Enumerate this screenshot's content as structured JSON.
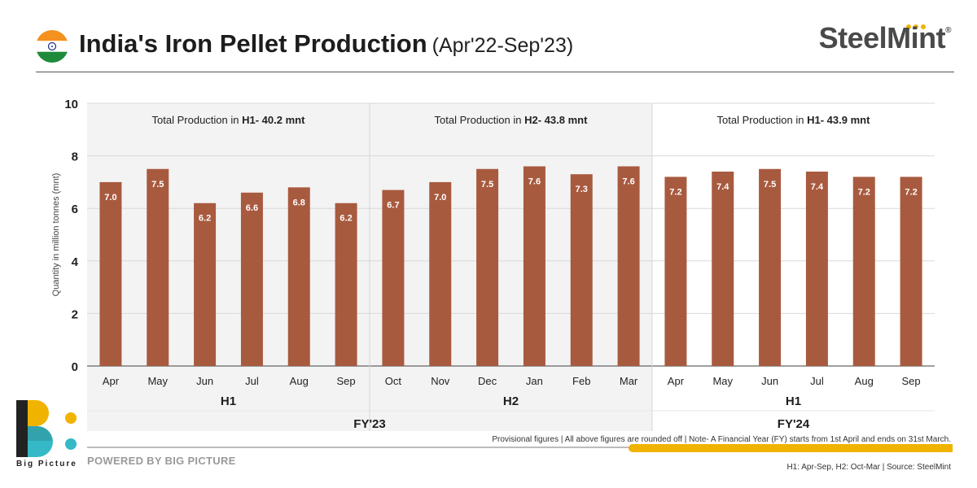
{
  "header": {
    "title": "India's Iron Pellet Production",
    "subtitle": "(Apr'22-Sep'23)",
    "brand": "SteelMint",
    "brand_reg": "®"
  },
  "chart_data": {
    "type": "bar",
    "title": "India's Iron Pellet Production (Apr'22-Sep'23)",
    "ylabel": "Quantity in million tonnes (mnt)",
    "xlabel": "",
    "ylim": [
      0,
      10
    ],
    "yticks": [
      0,
      2,
      4,
      6,
      8,
      10
    ],
    "grid": true,
    "bar_color": "#a85a3f",
    "categories": [
      "Apr",
      "May",
      "Jun",
      "Jul",
      "Aug",
      "Sep",
      "Oct",
      "Nov",
      "Dec",
      "Jan",
      "Feb",
      "Mar",
      "Apr",
      "May",
      "Jun",
      "Jul",
      "Aug",
      "Sep"
    ],
    "values": [
      7.0,
      7.5,
      6.2,
      6.6,
      6.8,
      6.2,
      6.7,
      7.0,
      7.5,
      7.6,
      7.3,
      7.6,
      7.2,
      7.4,
      7.5,
      7.4,
      7.2,
      7.2
    ],
    "labels": [
      "7.0",
      "7.5",
      "6.2",
      "6.6",
      "6.8",
      "6.2",
      "6.7",
      "7.0",
      "7.5",
      "7.6",
      "7.3",
      "7.6",
      "7.2",
      "7.4",
      "7.5",
      "7.4",
      "7.2",
      "7.2"
    ],
    "halves": [
      {
        "label": "H1",
        "note_prefix": "Total Production in ",
        "note_bold": "H1- 40.2 mnt",
        "shaded": true
      },
      {
        "label": "H2",
        "note_prefix": "Total Production in ",
        "note_bold": "H2- 43.8 mnt",
        "shaded": true
      },
      {
        "label": "H1",
        "note_prefix": "Total Production in ",
        "note_bold": "H1- 43.9 mnt",
        "shaded": false
      }
    ],
    "fiscal_years": [
      {
        "label": "FY'23",
        "shaded": true
      },
      {
        "label": "FY'24",
        "shaded": false
      }
    ]
  },
  "footer": {
    "powered_by": "POWERED BY BIG PICTURE",
    "big_picture": "Big Picture",
    "note": "Provisional figures | All above figures are rounded off | Note- A Financial Year (FY) starts from 1st April and ends on 31st March.",
    "source": "H1: Apr-Sep, H2: Oct-Mar | Source: SteelMint"
  },
  "colors": {
    "bar": "#a85a3f",
    "shade": "#f3f3f3",
    "gold": "#f0b400",
    "teal": "#35b9c6"
  }
}
